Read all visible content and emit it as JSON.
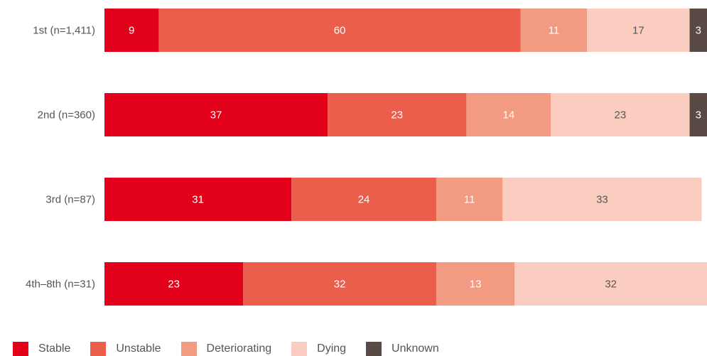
{
  "chart_data": {
    "type": "bar",
    "orientation": "horizontal",
    "stacked": true,
    "categories": [
      "1st (n=1,411)",
      "2nd (n=360)",
      "3rd (n=87)",
      "4th–8th (n=31)"
    ],
    "series": [
      {
        "name": "Stable",
        "color": "#e2001a",
        "values": [
          9,
          37,
          31,
          23
        ]
      },
      {
        "name": "Unstable",
        "color": "#eb5e4b",
        "values": [
          60,
          23,
          24,
          32
        ]
      },
      {
        "name": "Deteriorating",
        "color": "#f29a82",
        "values": [
          11,
          14,
          11,
          13
        ]
      },
      {
        "name": "Dying",
        "color": "#fbcdc0",
        "values": [
          17,
          23,
          33,
          32
        ]
      },
      {
        "name": "Unknown",
        "color": "#5a4a46",
        "values": [
          3,
          3,
          0,
          0
        ]
      }
    ],
    "label_colors": [
      "#ffffff",
      "#ffffff",
      "#ffffff",
      "#555555",
      "#ffffff"
    ],
    "xlim": [
      0,
      100
    ],
    "grid": false,
    "legend_position": "bottom-left"
  }
}
